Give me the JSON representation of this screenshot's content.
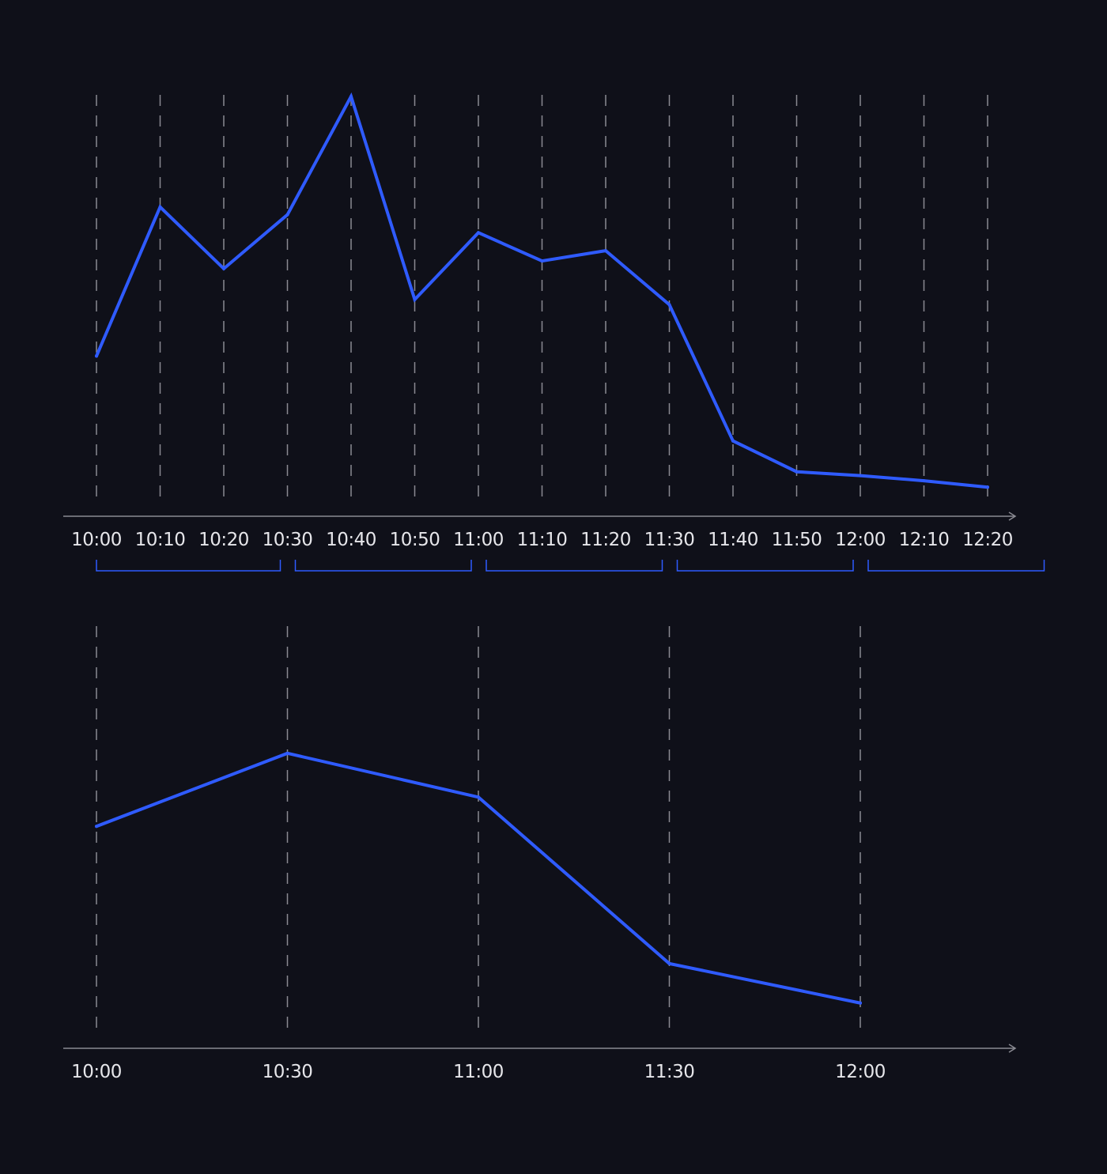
{
  "colors": {
    "background": "#0f1019",
    "line": "#2f5bff",
    "grid": "#8a8a92",
    "axis": "#8a8a92",
    "text": "#e6e6ea",
    "bracket": "#2f5bff"
  },
  "chart_data": [
    {
      "type": "line",
      "title": "",
      "xlabel": "",
      "ylabel": "",
      "grid": "vertical-dashed",
      "x": [
        "10:00",
        "10:10",
        "10:20",
        "10:30",
        "10:40",
        "10:50",
        "11:00",
        "11:10",
        "11:20",
        "11:30",
        "11:40",
        "11:50",
        "12:00",
        "12:10",
        "12:20"
      ],
      "series": [
        {
          "values": [
            20,
            78,
            54,
            75,
            121,
            42,
            68,
            57,
            61,
            40,
            -13,
            -25,
            -26.5,
            -28.5,
            -31
          ]
        }
      ],
      "ylim": [
        -42,
        121
      ],
      "groupings": [
        {
          "from": "10:00",
          "to": "10:20"
        },
        {
          "from": "10:30",
          "to": "10:50"
        },
        {
          "from": "11:00",
          "to": "11:20"
        },
        {
          "from": "11:30",
          "to": "11:50"
        },
        {
          "from": "12:00",
          "to": "12:20"
        }
      ]
    },
    {
      "type": "line",
      "title": "",
      "xlabel": "",
      "ylabel": "",
      "grid": "vertical-dashed",
      "x": [
        "10:00",
        "10:30",
        "11:00",
        "11:30",
        "12:00"
      ],
      "series": [
        {
          "values": [
            69,
            94,
            79,
            22,
            8.5
          ]
        }
      ],
      "ylim": [
        -7,
        137
      ]
    }
  ]
}
